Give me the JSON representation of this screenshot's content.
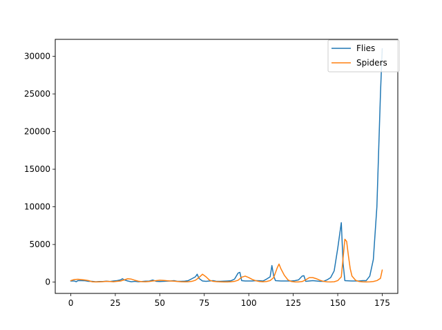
{
  "chart_data": {
    "type": "line",
    "title": "",
    "xlabel": "",
    "ylabel": "",
    "xlim": [
      -8.75,
      183.75
    ],
    "ylim": [
      -1500,
      32250
    ],
    "grid": false,
    "legend_position": "top-right",
    "x_ticks": [
      0,
      25,
      50,
      75,
      100,
      125,
      150,
      175
    ],
    "y_ticks": [
      0,
      5000,
      10000,
      15000,
      20000,
      25000,
      30000
    ],
    "series": [
      {
        "name": "Flies",
        "color": "#1f77b4",
        "points": [
          [
            0,
            150
          ],
          [
            2,
            150
          ],
          [
            3,
            50
          ],
          [
            4,
            200
          ],
          [
            6,
            200
          ],
          [
            8,
            180
          ],
          [
            10,
            100
          ],
          [
            12,
            100
          ],
          [
            14,
            50
          ],
          [
            16,
            80
          ],
          [
            18,
            80
          ],
          [
            20,
            130
          ],
          [
            22,
            80
          ],
          [
            24,
            150
          ],
          [
            26,
            200
          ],
          [
            28,
            300
          ],
          [
            29,
            450
          ],
          [
            30,
            300
          ],
          [
            32,
            150
          ],
          [
            34,
            50
          ],
          [
            36,
            100
          ],
          [
            38,
            50
          ],
          [
            40,
            80
          ],
          [
            42,
            130
          ],
          [
            44,
            130
          ],
          [
            46,
            280
          ],
          [
            48,
            100
          ],
          [
            50,
            80
          ],
          [
            52,
            100
          ],
          [
            54,
            130
          ],
          [
            56,
            150
          ],
          [
            58,
            200
          ],
          [
            60,
            100
          ],
          [
            62,
            100
          ],
          [
            64,
            130
          ],
          [
            66,
            200
          ],
          [
            68,
            450
          ],
          [
            70,
            700
          ],
          [
            71,
            1050
          ],
          [
            72,
            500
          ],
          [
            74,
            150
          ],
          [
            76,
            100
          ],
          [
            78,
            150
          ],
          [
            80,
            200
          ],
          [
            82,
            100
          ],
          [
            84,
            100
          ],
          [
            86,
            130
          ],
          [
            88,
            150
          ],
          [
            90,
            180
          ],
          [
            92,
            400
          ],
          [
            94,
            1200
          ],
          [
            95,
            1300
          ],
          [
            96,
            200
          ],
          [
            98,
            150
          ],
          [
            100,
            150
          ],
          [
            102,
            150
          ],
          [
            104,
            200
          ],
          [
            106,
            180
          ],
          [
            108,
            150
          ],
          [
            110,
            400
          ],
          [
            112,
            700
          ],
          [
            113,
            2200
          ],
          [
            114,
            800
          ],
          [
            115,
            200
          ],
          [
            118,
            150
          ],
          [
            122,
            150
          ],
          [
            124,
            150
          ],
          [
            126,
            200
          ],
          [
            128,
            300
          ],
          [
            130,
            800
          ],
          [
            131,
            850
          ],
          [
            132,
            100
          ],
          [
            134,
            150
          ],
          [
            136,
            200
          ],
          [
            138,
            150
          ],
          [
            140,
            100
          ],
          [
            142,
            100
          ],
          [
            144,
            300
          ],
          [
            146,
            600
          ],
          [
            148,
            1500
          ],
          [
            150,
            4500
          ],
          [
            152,
            7900
          ],
          [
            153,
            2500
          ],
          [
            154,
            200
          ],
          [
            158,
            150
          ],
          [
            162,
            150
          ],
          [
            164,
            200
          ],
          [
            166,
            200
          ],
          [
            168,
            800
          ],
          [
            170,
            3000
          ],
          [
            172,
            10000
          ],
          [
            174,
            25000
          ],
          [
            175,
            31000
          ]
        ]
      },
      {
        "name": "Spiders",
        "color": "#ff7f0e",
        "points": [
          [
            0,
            200
          ],
          [
            2,
            350
          ],
          [
            4,
            380
          ],
          [
            6,
            330
          ],
          [
            8,
            280
          ],
          [
            10,
            200
          ],
          [
            12,
            50
          ],
          [
            14,
            30
          ],
          [
            16,
            40
          ],
          [
            18,
            60
          ],
          [
            20,
            100
          ],
          [
            22,
            80
          ],
          [
            24,
            50
          ],
          [
            26,
            100
          ],
          [
            28,
            150
          ],
          [
            30,
            300
          ],
          [
            32,
            450
          ],
          [
            34,
            400
          ],
          [
            36,
            250
          ],
          [
            38,
            120
          ],
          [
            40,
            60
          ],
          [
            42,
            50
          ],
          [
            44,
            80
          ],
          [
            46,
            150
          ],
          [
            48,
            200
          ],
          [
            50,
            250
          ],
          [
            52,
            230
          ],
          [
            54,
            180
          ],
          [
            56,
            150
          ],
          [
            58,
            130
          ],
          [
            60,
            80
          ],
          [
            62,
            50
          ],
          [
            64,
            40
          ],
          [
            66,
            50
          ],
          [
            68,
            100
          ],
          [
            70,
            250
          ],
          [
            72,
            600
          ],
          [
            74,
            1050
          ],
          [
            76,
            700
          ],
          [
            78,
            250
          ],
          [
            80,
            100
          ],
          [
            82,
            60
          ],
          [
            84,
            40
          ],
          [
            86,
            30
          ],
          [
            88,
            30
          ],
          [
            90,
            50
          ],
          [
            92,
            100
          ],
          [
            94,
            250
          ],
          [
            96,
            650
          ],
          [
            98,
            800
          ],
          [
            100,
            600
          ],
          [
            102,
            350
          ],
          [
            104,
            180
          ],
          [
            106,
            80
          ],
          [
            108,
            50
          ],
          [
            110,
            80
          ],
          [
            112,
            200
          ],
          [
            114,
            600
          ],
          [
            116,
            1900
          ],
          [
            117,
            2400
          ],
          [
            118,
            1800
          ],
          [
            120,
            900
          ],
          [
            122,
            300
          ],
          [
            124,
            80
          ],
          [
            126,
            30
          ],
          [
            128,
            30
          ],
          [
            130,
            80
          ],
          [
            132,
            300
          ],
          [
            134,
            600
          ],
          [
            136,
            600
          ],
          [
            138,
            450
          ],
          [
            140,
            250
          ],
          [
            142,
            100
          ],
          [
            144,
            40
          ],
          [
            146,
            30
          ],
          [
            148,
            50
          ],
          [
            150,
            200
          ],
          [
            152,
            700
          ],
          [
            154,
            5700
          ],
          [
            155,
            5400
          ],
          [
            156,
            3500
          ],
          [
            157,
            1800
          ],
          [
            158,
            800
          ],
          [
            160,
            250
          ],
          [
            162,
            80
          ],
          [
            164,
            40
          ],
          [
            166,
            30
          ],
          [
            168,
            40
          ],
          [
            170,
            80
          ],
          [
            172,
            200
          ],
          [
            174,
            500
          ],
          [
            175,
            1600
          ]
        ]
      }
    ]
  }
}
